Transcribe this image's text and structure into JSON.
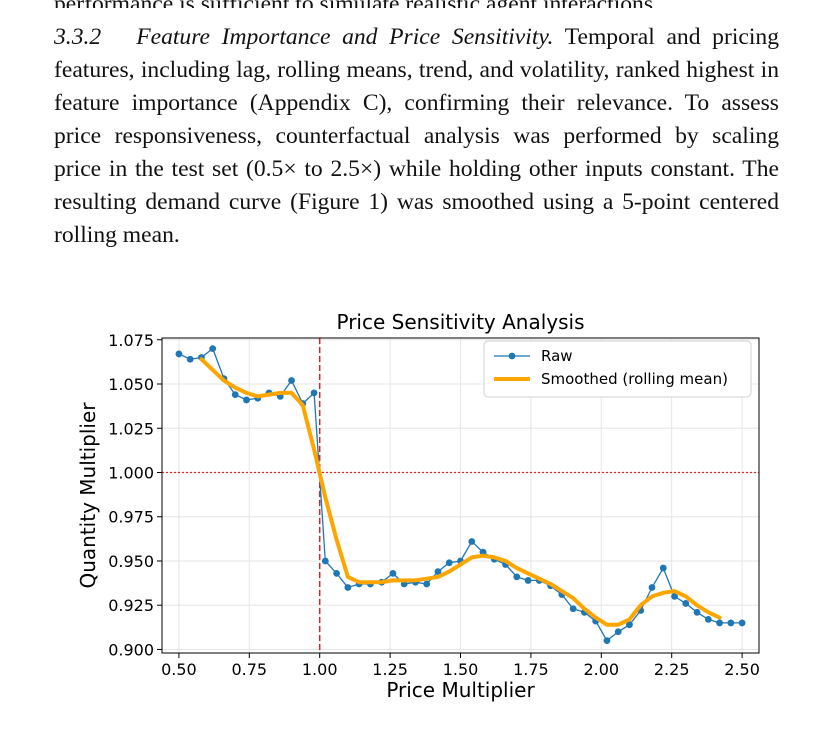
{
  "prev_line": "performance is sufficient to simulate realistic agent interactions.",
  "section": {
    "number": "3.3.2",
    "heading": "Feature Importance and Price Sensitivity.",
    "body": "Temporal and pricing features, including lag, rolling means, trend, and volatility, ranked highest in feature importance (Appendix C), confirming their relevance. To assess price responsiveness, counterfactual analysis was performed by scaling price in the test set (0.5× to 2.5×) while holding other inputs constant. The resulting demand curve (Figure 1) was smoothed using a 5-point centered rolling mean."
  },
  "chart_data": {
    "type": "line",
    "title": "Price Sensitivity Analysis",
    "xlabel": "Price Multiplier",
    "ylabel": "Quantity Multiplier",
    "xlim": [
      0.44,
      2.56
    ],
    "ylim": [
      0.898,
      1.076
    ],
    "xticks": [
      "0.50",
      "0.75",
      "1.00",
      "1.25",
      "1.50",
      "1.75",
      "2.00",
      "2.25",
      "2.50"
    ],
    "yticks": [
      "0.900",
      "0.925",
      "0.950",
      "0.975",
      "1.000",
      "1.025",
      "1.050",
      "1.075"
    ],
    "grid": true,
    "legend": "top-right",
    "reference_lines": [
      {
        "orientation": "vertical",
        "value": 1.0,
        "color": "#d62728",
        "style": "dashed"
      },
      {
        "orientation": "horizontal",
        "value": 1.0,
        "color": "#d62728",
        "style": "dotted"
      }
    ],
    "series": [
      {
        "name": "Raw",
        "color": "#1f77b4",
        "marker": "circle",
        "x": [
          0.5,
          0.54,
          0.58,
          0.62,
          0.66,
          0.7,
          0.74,
          0.78,
          0.82,
          0.86,
          0.9,
          0.94,
          0.98,
          1.02,
          1.06,
          1.1,
          1.14,
          1.18,
          1.22,
          1.26,
          1.3,
          1.34,
          1.38,
          1.42,
          1.46,
          1.5,
          1.54,
          1.58,
          1.62,
          1.66,
          1.7,
          1.74,
          1.78,
          1.82,
          1.86,
          1.9,
          1.94,
          1.98,
          2.02,
          2.06,
          2.1,
          2.14,
          2.18,
          2.22,
          2.26,
          2.3,
          2.34,
          2.38,
          2.42,
          2.46,
          2.5
        ],
        "y": [
          1.067,
          1.064,
          1.065,
          1.07,
          1.053,
          1.044,
          1.041,
          1.042,
          1.045,
          1.043,
          1.052,
          1.039,
          1.045,
          0.95,
          0.943,
          0.935,
          0.937,
          0.937,
          0.938,
          0.943,
          0.937,
          0.938,
          0.937,
          0.944,
          0.949,
          0.95,
          0.961,
          0.955,
          0.951,
          0.948,
          0.941,
          0.939,
          0.939,
          0.936,
          0.931,
          0.923,
          0.921,
          0.916,
          0.905,
          0.91,
          0.914,
          0.922,
          0.935,
          0.946,
          0.93,
          0.926,
          0.921,
          0.917,
          0.915,
          0.915,
          0.915
        ]
      },
      {
        "name": "Smoothed (rolling mean)",
        "color": "#ffa500",
        "marker": "none",
        "x": [
          0.58,
          0.62,
          0.66,
          0.7,
          0.74,
          0.78,
          0.82,
          0.86,
          0.9,
          0.94,
          0.98,
          1.02,
          1.06,
          1.1,
          1.14,
          1.18,
          1.22,
          1.26,
          1.3,
          1.34,
          1.38,
          1.42,
          1.46,
          1.5,
          1.54,
          1.58,
          1.62,
          1.66,
          1.7,
          1.74,
          1.78,
          1.82,
          1.86,
          1.9,
          1.94,
          1.98,
          2.02,
          2.06,
          2.1,
          2.14,
          2.18,
          2.22,
          2.26,
          2.3,
          2.34,
          2.38,
          2.42
        ],
        "y": [
          1.064,
          1.058,
          1.052,
          1.048,
          1.045,
          1.043,
          1.044,
          1.045,
          1.045,
          1.038,
          1.013,
          0.986,
          0.962,
          0.941,
          0.938,
          0.938,
          0.938,
          0.939,
          0.939,
          0.939,
          0.94,
          0.941,
          0.944,
          0.948,
          0.952,
          0.953,
          0.952,
          0.95,
          0.946,
          0.943,
          0.94,
          0.937,
          0.933,
          0.929,
          0.923,
          0.918,
          0.914,
          0.914,
          0.917,
          0.925,
          0.93,
          0.932,
          0.933,
          0.93,
          0.925,
          0.921,
          0.918
        ]
      }
    ]
  }
}
